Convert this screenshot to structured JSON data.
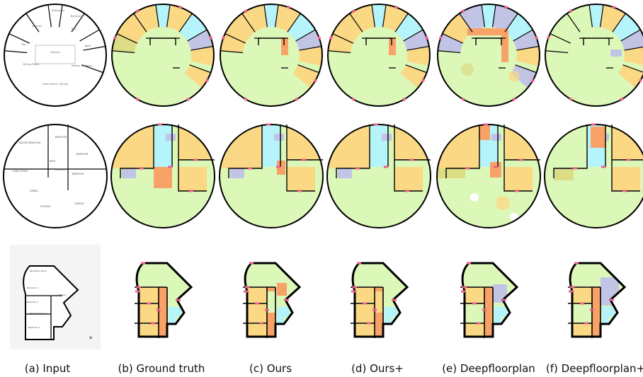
{
  "captions": [
    "(a) Input",
    "(b) Ground truth",
    "(c) Ours",
    "(d) Ours+",
    "(e) Deepfloorplan",
    "(f) Deepfloorplan+"
  ],
  "input_room_labels": {
    "row1": [
      "Laundry",
      "Bathroom",
      "Bedroom",
      "Den",
      "Kitchen",
      "Hall",
      "Bath",
      "Dining Room",
      "Master Bedroom",
      "Great Room / Dining"
    ],
    "row2": [
      "MASTER BEDROOM",
      "BEDROOM",
      "BATH",
      "BEDROOM",
      "LIVING ROOM",
      "LAUNDRY",
      "BEDROOM",
      "DINING",
      "KITCHEN",
      "GARAGE"
    ],
    "row3": [
      "Reception Room",
      "Bedroom 1",
      "Kitchen",
      "Bedroom 2",
      "Master Bedroom",
      "Bedroom 3"
    ]
  },
  "colors": {
    "living": "#dcf8b8",
    "bedroom": "#fbd884",
    "bath": "#b4f4fa",
    "closet": "#c2c4e6",
    "hall": "#f8a268",
    "balcony": "#dcdc84",
    "door": "#f0608c",
    "wall": "#000000"
  }
}
